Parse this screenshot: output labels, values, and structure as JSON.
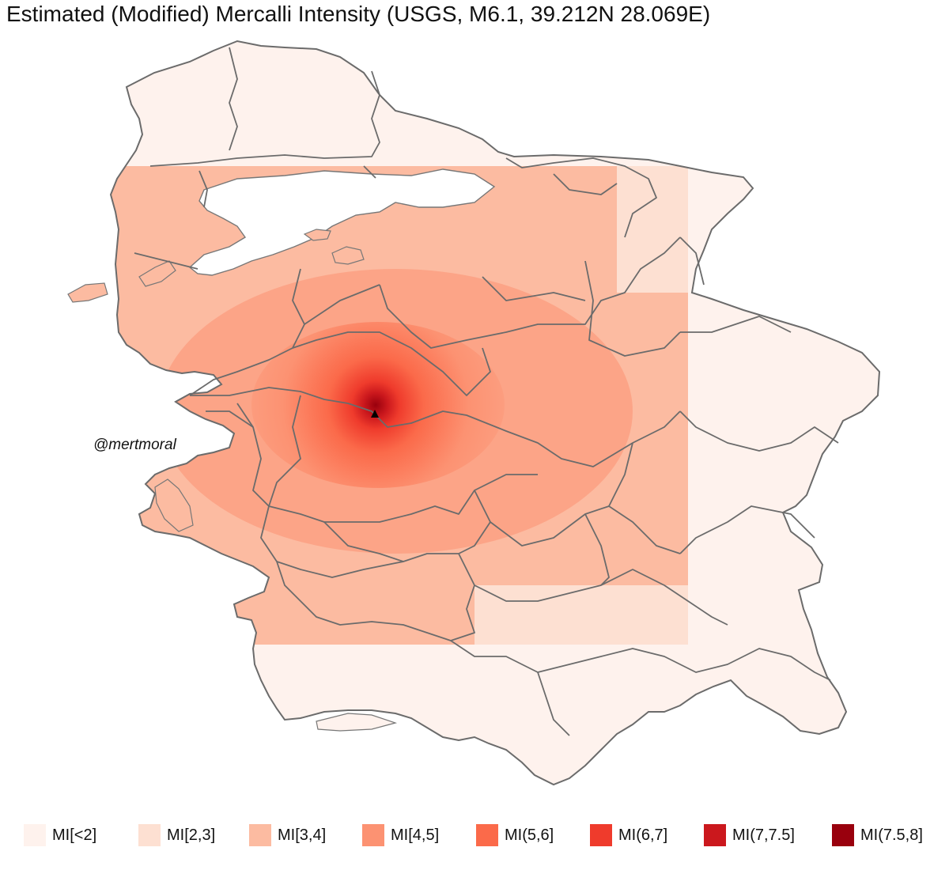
{
  "title": "Estimated (Modified) Mercalli Intensity (USGS, M6.1, 39.212N 28.069E)",
  "credit": "@mertmoral",
  "legend": [
    {
      "label": "MI[<2]",
      "color": "#FEF2ED"
    },
    {
      "label": "MI[2,3]",
      "color": "#FDE0D2"
    },
    {
      "label": "MI[3,4]",
      "color": "#FCBBA1"
    },
    {
      "label": "MI[4,5]",
      "color": "#FC9272"
    },
    {
      "label": "MI(5,6]",
      "color": "#FB6A4A"
    },
    {
      "label": "MI(6,7]",
      "color": "#EF3B2C"
    },
    {
      "label": "MI(7,7.5]",
      "color": "#CB181D"
    },
    {
      "label": "MI(7.5,8]",
      "color": "#99000D"
    }
  ],
  "epicenter": {
    "lat": 39.212,
    "lon": 28.069
  }
}
